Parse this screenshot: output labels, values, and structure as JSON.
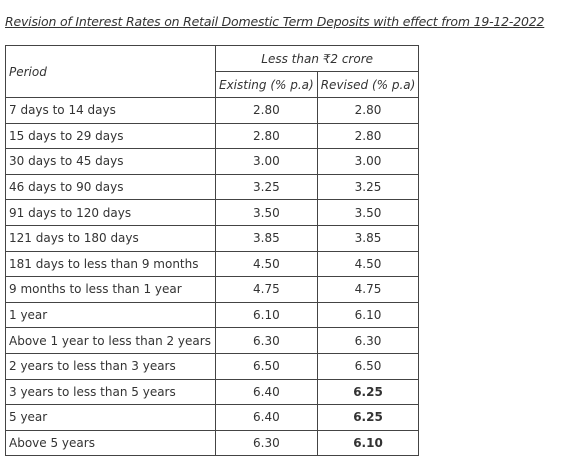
{
  "title": "Revision of Interest Rates on Retail Domestic Term Deposits with effect from 19-12-2022",
  "table": {
    "header": {
      "period": "Period",
      "group": "Less than ₹2 crore",
      "columns": [
        "Existing (% p.a)",
        "Revised (% p.a)"
      ]
    },
    "rows": [
      [
        "7 days to 14 days",
        "2.80",
        "2.80"
      ],
      [
        "15 days to 29 days",
        "2.80",
        "2.80"
      ],
      [
        "30 days to 45 days",
        "3.00",
        "3.00"
      ],
      [
        "46 days to 90 days",
        "3.25",
        "3.25"
      ],
      [
        "91 days to 120 days",
        "3.50",
        "3.50"
      ],
      [
        "121 days to 180 days",
        "3.85",
        "3.85"
      ],
      [
        "181 days to less than 9 months",
        "4.50",
        "4.50"
      ],
      [
        "9 months to less than 1 year",
        "4.75",
        "4.75"
      ],
      [
        "1 year",
        "6.10",
        "6.10"
      ],
      [
        "Above 1 year to less than 2 years",
        "6.30",
        "6.30"
      ],
      [
        "2 years to less than 3 years",
        "6.50",
        "6.50"
      ],
      [
        "3 years to less than 5 years",
        "6.40",
        "6.25"
      ],
      [
        "5 year",
        "6.40",
        "6.25"
      ],
      [
        "Above 5 years",
        "6.30",
        "6.10"
      ]
    ]
  }
}
